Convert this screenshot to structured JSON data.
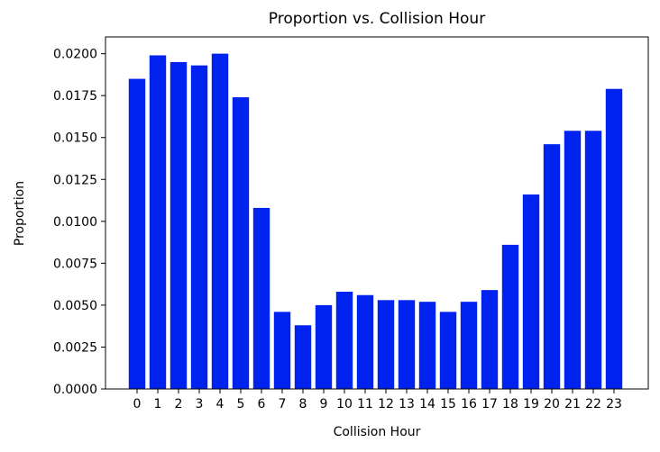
{
  "chart_data": {
    "type": "bar",
    "title": "Proportion vs. Collision Hour",
    "xlabel": "Collision Hour",
    "ylabel": "Proportion",
    "categories": [
      "0",
      "1",
      "2",
      "3",
      "4",
      "5",
      "6",
      "7",
      "8",
      "9",
      "10",
      "11",
      "12",
      "13",
      "14",
      "15",
      "16",
      "17",
      "18",
      "19",
      "20",
      "21",
      "22",
      "23"
    ],
    "values": [
      0.0185,
      0.0199,
      0.0195,
      0.0193,
      0.02,
      0.0174,
      0.0108,
      0.0046,
      0.0038,
      0.005,
      0.0058,
      0.0056,
      0.0053,
      0.0053,
      0.0052,
      0.0046,
      0.0052,
      0.0059,
      0.0086,
      0.0116,
      0.0146,
      0.0154,
      0.0154,
      0.0179
    ],
    "ylim": [
      0,
      0.021
    ],
    "yticks": [
      "0.0000",
      "0.0025",
      "0.0050",
      "0.0075",
      "0.0100",
      "0.0125",
      "0.0150",
      "0.0175",
      "0.0200"
    ],
    "bar_color": "#0022ee",
    "grid": false,
    "legend": "none"
  }
}
